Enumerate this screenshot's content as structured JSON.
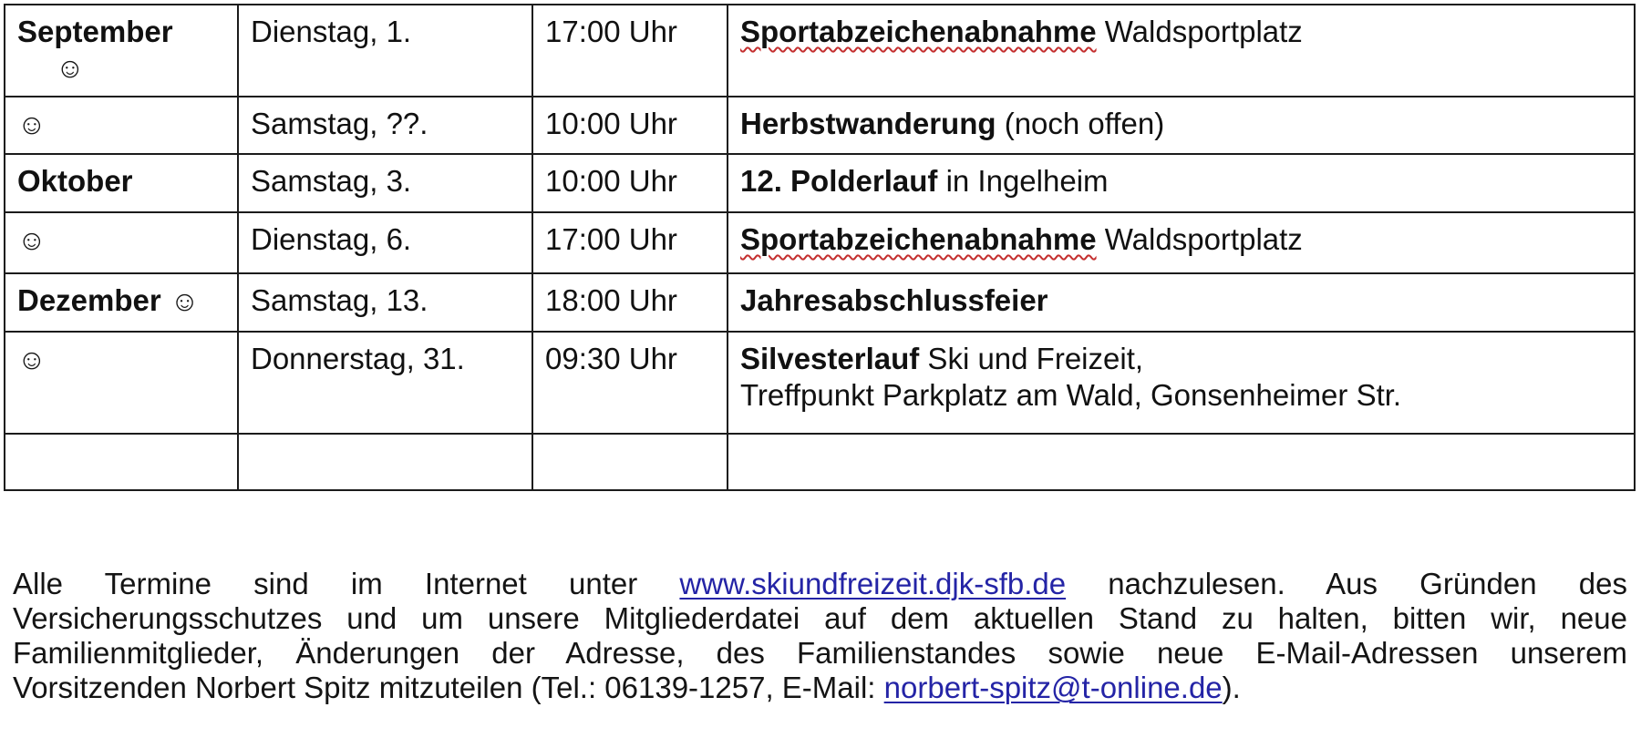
{
  "document": {
    "background_color": "#ffffff",
    "text_color": "#141414",
    "border_color": "#1b1b1b",
    "link_color": "#2424a6",
    "squiggle_color": "#c42f2f",
    "smiley_char": "☺"
  },
  "table": {
    "rows": [
      {
        "month_text": "September",
        "month_bold": true,
        "smiley": "below",
        "day": "Dienstag, 1.",
        "time": "17:00 Uhr",
        "event_bold": "Sportabzeichenabnahme",
        "event_rest": " Waldsportplatz",
        "event_line2": "",
        "misspelled": true,
        "empty": false
      },
      {
        "month_text": "",
        "month_bold": false,
        "smiley": "only",
        "day": "Samstag, ??.",
        "time": "10:00 Uhr",
        "event_bold": "Herbstwanderung",
        "event_rest": " (noch offen)",
        "event_line2": "",
        "misspelled": false,
        "empty": false
      },
      {
        "month_text": "Oktober",
        "month_bold": true,
        "smiley": "none",
        "day": "Samstag, 3.",
        "time": "10:00 Uhr",
        "event_bold": "12. Polderlauf",
        "event_rest": " in Ingelheim",
        "event_line2": "",
        "misspelled": false,
        "empty": false
      },
      {
        "month_text": "",
        "month_bold": false,
        "smiley": "only",
        "day": "Dienstag, 6.",
        "time": "17:00 Uhr",
        "event_bold": "Sportabzeichenabnahme",
        "event_rest": " Waldsportplatz",
        "event_line2": "",
        "misspelled": true,
        "empty": false
      },
      {
        "month_text": "Dezember",
        "month_bold": true,
        "smiley": "inline",
        "day": "Samstag, 13.",
        "time": "18:00 Uhr",
        "event_bold": "Jahresabschlussfeier",
        "event_rest": "",
        "event_line2": "",
        "misspelled": false,
        "empty": false
      },
      {
        "month_text": "",
        "month_bold": false,
        "smiley": "only",
        "day": "Donnerstag, 31.",
        "time": "09:30 Uhr",
        "event_bold": "Silvesterlauf",
        "event_rest": " Ski und Freizeit,",
        "event_line2": "Treffpunkt Parkplatz am Wald, Gonsenheimer Str.",
        "misspelled": false,
        "empty": false
      },
      {
        "month_text": "",
        "month_bold": false,
        "smiley": "none",
        "day": "",
        "time": "",
        "event_bold": "",
        "event_rest": "",
        "event_line2": "",
        "misspelled": false,
        "empty": true
      }
    ]
  },
  "paragraph": {
    "lines": [
      {
        "justify_last": true,
        "segments": [
          {
            "text": "Alle Termine sind im Internet unter "
          },
          {
            "text": "www.skiundfreizeit.djk-sfb.de",
            "link": true,
            "name": "website-link"
          },
          {
            "text": " nachzulesen. Aus Gründen des"
          }
        ]
      },
      {
        "justify_last": true,
        "segments": [
          {
            "text": "Versicherungsschutzes und um unsere Mitgliederdatei auf dem aktuellen Stand zu halten, bitten wir, neue"
          }
        ]
      },
      {
        "justify_last": true,
        "segments": [
          {
            "text": "Familienmitglieder, Änderungen der Adresse, des Familienstandes sowie neue E-Mail-Adressen unserem"
          }
        ]
      },
      {
        "justify_last": false,
        "segments": [
          {
            "text": "Vorsitzenden Norbert Spitz mitzuteilen (Tel.: 06139-1257, E-Mail: "
          },
          {
            "text": "norbert-spitz@t-online.de",
            "link": true,
            "name": "email-link"
          },
          {
            "text": ")."
          }
        ]
      }
    ]
  }
}
